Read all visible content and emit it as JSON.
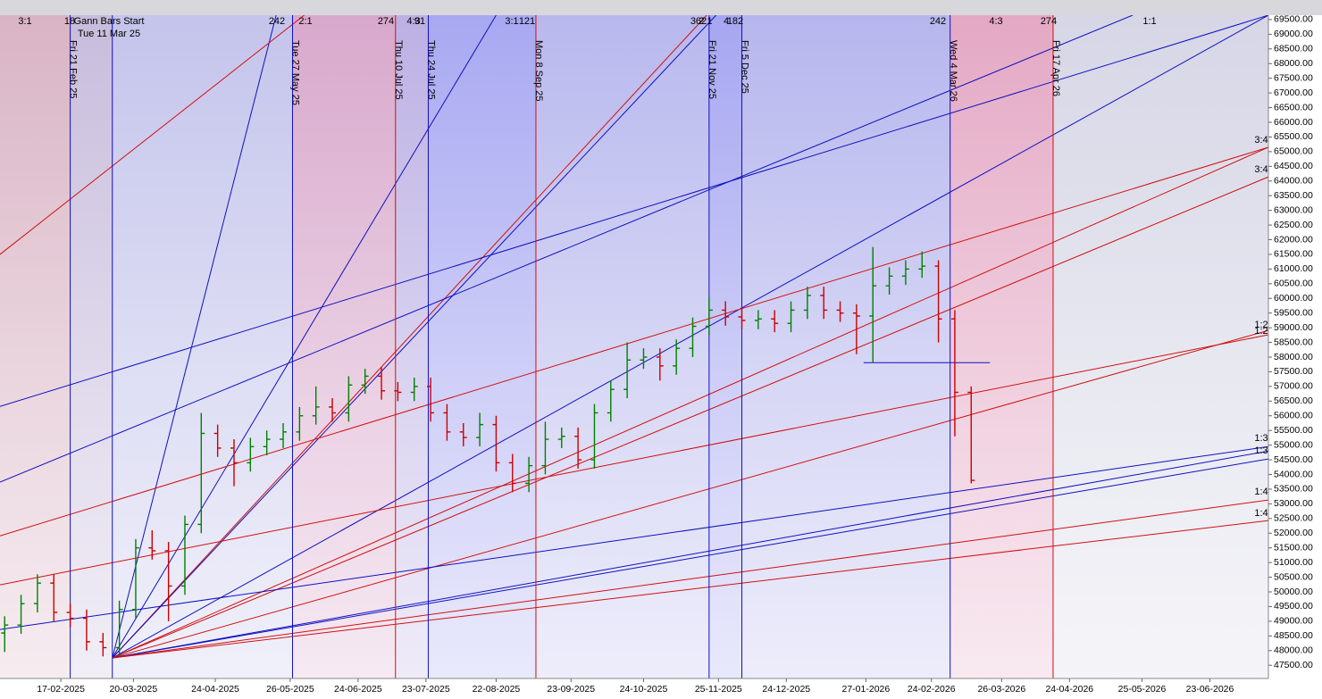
{
  "chart_data": {
    "type": "ohlc",
    "xlim": [
      "2025-01-22",
      "2026-07-18"
    ],
    "ylim": [
      47050,
      69650
    ],
    "xticks": [
      {
        "value": "2025-02-17",
        "label": "17-02-2025"
      },
      {
        "value": "2025-03-20",
        "label": "20-03-2025"
      },
      {
        "value": "2025-04-24",
        "label": "24-04-2025"
      },
      {
        "value": "2025-05-26",
        "label": "26-05-2025"
      },
      {
        "value": "2025-06-24",
        "label": "24-06-2025"
      },
      {
        "value": "2025-07-23",
        "label": "23-07-2025"
      },
      {
        "value": "2025-08-22",
        "label": "22-08-2025"
      },
      {
        "value": "2025-09-23",
        "label": "23-09-2025"
      },
      {
        "value": "2025-10-24",
        "label": "24-10-2025"
      },
      {
        "value": "2025-11-25",
        "label": "25-11-2025"
      },
      {
        "value": "2025-12-24",
        "label": "24-12-2025"
      },
      {
        "value": "2026-01-27",
        "label": "27-01-2026"
      },
      {
        "value": "2026-02-24",
        "label": "24-02-2026"
      },
      {
        "value": "2026-03-26",
        "label": "26-03-2026"
      },
      {
        "value": "2026-04-24",
        "label": "24-04-2026"
      },
      {
        "value": "2026-05-25",
        "label": "25-05-2026"
      },
      {
        "value": "2026-06-23",
        "label": "23-06-2026"
      }
    ],
    "yticks": [
      {
        "value": 47500,
        "label": "47500.00"
      },
      {
        "value": 48000,
        "label": "48000.00"
      },
      {
        "value": 48500,
        "label": "48500.00"
      },
      {
        "value": 49000,
        "label": "49000.00"
      },
      {
        "value": 49500,
        "label": "49500.00"
      },
      {
        "value": 50000,
        "label": "50000.00"
      },
      {
        "value": 50500,
        "label": "50500.00"
      },
      {
        "value": 51000,
        "label": "51000.00"
      },
      {
        "value": 51500,
        "label": "51500.00"
      },
      {
        "value": 52000,
        "label": "52000.00"
      },
      {
        "value": 52500,
        "label": "52500.00"
      },
      {
        "value": 53000,
        "label": "53000.00"
      },
      {
        "value": 53500,
        "label": "53500.00"
      },
      {
        "value": 54000,
        "label": "54000.00"
      },
      {
        "value": 54500,
        "label": "54500.00"
      },
      {
        "value": 55000,
        "label": "55000.00"
      },
      {
        "value": 55500,
        "label": "55500.00"
      },
      {
        "value": 56000,
        "label": "56000.00"
      },
      {
        "value": 56500,
        "label": "56500.00"
      },
      {
        "value": 57000,
        "label": "57000.00"
      },
      {
        "value": 57500,
        "label": "57500.00"
      },
      {
        "value": 58000,
        "label": "58000.00"
      },
      {
        "value": 58500,
        "label": "58500.00"
      },
      {
        "value": 59000,
        "label": "59000.00"
      },
      {
        "value": 59500,
        "label": "59500.00"
      },
      {
        "value": 60000,
        "label": "60000.00"
      },
      {
        "value": 60500,
        "label": "60500.00"
      },
      {
        "value": 61000,
        "label": "61000.00"
      },
      {
        "value": 61500,
        "label": "61500.00"
      },
      {
        "value": 62000,
        "label": "62000.00"
      },
      {
        "value": 62500,
        "label": "62500.00"
      },
      {
        "value": 63000,
        "label": "63000.00"
      },
      {
        "value": 63500,
        "label": "63500.00"
      },
      {
        "value": 64000,
        "label": "64000.00"
      },
      {
        "value": 64500,
        "label": "64500.00"
      },
      {
        "value": 65000,
        "label": "65000.00"
      },
      {
        "value": 65500,
        "label": "65500.00"
      },
      {
        "value": 66000,
        "label": "66000.00"
      },
      {
        "value": 66500,
        "label": "66500.00"
      },
      {
        "value": 67000,
        "label": "67000.00"
      },
      {
        "value": 67500,
        "label": "67500.00"
      },
      {
        "value": 68000,
        "label": "68000.00"
      },
      {
        "value": 68500,
        "label": "68500.00"
      },
      {
        "value": 69000,
        "label": "69000.00"
      },
      {
        "value": 69500,
        "label": "69500.00"
      }
    ],
    "up_color": "#008000",
    "down_color": "#cc0000",
    "x": [
      "2025-01-24",
      "2025-01-31",
      "2025-02-07",
      "2025-02-14",
      "2025-02-21",
      "2025-02-28",
      "2025-03-07",
      "2025-03-14",
      "2025-03-21",
      "2025-03-28",
      "2025-04-04",
      "2025-04-11",
      "2025-04-18",
      "2025-04-25",
      "2025-05-02",
      "2025-05-09",
      "2025-05-16",
      "2025-05-23",
      "2025-05-30",
      "2025-06-06",
      "2025-06-13",
      "2025-06-20",
      "2025-06-27",
      "2025-07-04",
      "2025-07-11",
      "2025-07-18",
      "2025-07-25",
      "2025-08-01",
      "2025-08-08",
      "2025-08-15",
      "2025-08-22",
      "2025-08-29",
      "2025-09-05",
      "2025-09-12",
      "2025-09-19",
      "2025-09-26",
      "2025-10-03",
      "2025-10-10",
      "2025-10-17",
      "2025-10-24",
      "2025-10-31",
      "2025-11-07",
      "2025-11-14",
      "2025-11-21",
      "2025-11-28",
      "2025-12-05",
      "2025-12-12",
      "2025-12-19",
      "2025-12-26",
      "2026-01-02",
      "2026-01-09",
      "2026-01-16",
      "2026-01-23",
      "2026-01-30",
      "2026-02-06",
      "2026-02-13",
      "2026-02-20",
      "2026-02-27",
      "2026-03-06",
      "2026-03-13"
    ],
    "open": [
      48600,
      48870,
      49600,
      50300,
      49300,
      49100,
      48300,
      48100,
      49400,
      51500,
      51400,
      50200,
      52300,
      55400,
      54900,
      54400,
      54950,
      55200,
      55450,
      56000,
      56300,
      56100,
      57050,
      57350,
      56850,
      56800,
      57000,
      56100,
      55450,
      55260,
      55700,
      54400,
      53700,
      54300,
      55200,
      55300,
      54500,
      56100,
      56900,
      57900,
      58000,
      57700,
      58300,
      59050,
      59600,
      59370,
      59250,
      59300,
      59150,
      59600,
      60100,
      59600,
      59500,
      59400,
      60430,
      60760,
      61000,
      61100,
      59300,
      56800
    ],
    "high": [
      49170,
      49900,
      50600,
      50600,
      49600,
      49400,
      48600,
      49700,
      51800,
      52100,
      51700,
      52600,
      56100,
      55700,
      55200,
      55250,
      55500,
      55750,
      56300,
      57000,
      56600,
      57350,
      57600,
      57650,
      57150,
      57300,
      57300,
      56400,
      55750,
      56100,
      56000,
      54700,
      54600,
      55800,
      55600,
      55600,
      56400,
      57200,
      58500,
      58300,
      58300,
      58600,
      59350,
      60050,
      59900,
      59670,
      59600,
      59600,
      59900,
      60400,
      60400,
      59900,
      59800,
      61750,
      61060,
      61300,
      61600,
      61300,
      59600,
      57000
    ],
    "low": [
      47950,
      48570,
      49300,
      49000,
      48800,
      48000,
      47800,
      47800,
      49100,
      51100,
      49000,
      49900,
      52000,
      54600,
      53600,
      54100,
      54650,
      54900,
      55150,
      55700,
      55800,
      55800,
      56750,
      56550,
      56500,
      56500,
      55800,
      55150,
      54960,
      54960,
      54100,
      53400,
      53400,
      54000,
      54900,
      54200,
      54200,
      55800,
      56600,
      57600,
      57200,
      57400,
      58000,
      58750,
      59070,
      58950,
      58950,
      58850,
      58850,
      59300,
      59300,
      59200,
      58100,
      57800,
      60130,
      60460,
      60700,
      58500,
      55300,
      53700
    ],
    "close": [
      48870,
      49600,
      50300,
      49300,
      49100,
      48300,
      48100,
      49400,
      51500,
      51400,
      50200,
      52300,
      55400,
      54900,
      54400,
      54950,
      55200,
      55450,
      56000,
      56300,
      56100,
      57050,
      57350,
      56850,
      56800,
      57000,
      56100,
      55450,
      55260,
      55700,
      54400,
      53700,
      54300,
      55200,
      55300,
      54500,
      56100,
      56900,
      57900,
      58000,
      57700,
      58300,
      59050,
      59600,
      59370,
      59250,
      59300,
      59150,
      59600,
      60100,
      59600,
      59500,
      59400,
      60430,
      60760,
      61000,
      61100,
      59300,
      56800,
      53800
    ],
    "gann_start": {
      "title": "Gann Bars Start",
      "label": "Tue 11 Mar 25"
    },
    "markers": [
      {
        "x": "2025-02-21",
        "label": "Fri 21 Feb 25",
        "color": "#1010c0"
      },
      {
        "x": "2025-03-11",
        "color": "#1010c0"
      },
      {
        "x": "2025-05-27",
        "label": "Tue 27 May 25",
        "color": "#1010c0"
      },
      {
        "x": "2025-07-10",
        "label": "Thu 10 Jul 25",
        "color": "#d01010"
      },
      {
        "x": "2025-07-24",
        "label": "Thu 24 Jul 25",
        "color": "#1010c0"
      },
      {
        "x": "2025-09-08",
        "label": "Mon 8 Sep 25",
        "color": "#d01010"
      },
      {
        "x": "2025-11-21",
        "label": "Fri 21 Nov 25",
        "color": "#1010c0"
      },
      {
        "x": "2025-12-05",
        "label": "Fri 5 Dec 25",
        "color": "#1010c0"
      },
      {
        "x": "2026-03-04",
        "label": "Wed 4 Mar 26",
        "color": "#1010c0"
      },
      {
        "x": "2026-04-17",
        "label": "Fri 17 Apr 26",
        "color": "#d01010"
      }
    ],
    "band_colors": [
      "#d9b4c4",
      "#c8bcdc",
      "#c4c4ec",
      "#d8a8cc",
      "#bcb0e4",
      "#a8a8f2",
      "#b8b8ee",
      "#a6a6f2",
      "#b6b6ee",
      "#e4a8c4",
      "#d6d6e6"
    ],
    "lines": [
      {
        "from": [
          "2025-03-11",
          47750
        ],
        "to": [
          "2025-05-20",
          69650
        ],
        "color": "#1010c0"
      },
      {
        "from": [
          "2025-03-11",
          47750
        ],
        "to": [
          "2025-08-22",
          69650
        ],
        "color": "#1010c0"
      },
      {
        "from": [
          "2025-03-11",
          47750
        ],
        "to": [
          "2025-11-20",
          69650
        ],
        "color": "#d01010"
      },
      {
        "from": [
          "2025-03-11",
          47750
        ],
        "to": [
          "2025-11-24",
          69650
        ],
        "color": "#1010c0"
      },
      {
        "from": [
          "2025-03-11",
          47750
        ],
        "to": [
          "2026-07-18",
          69650
        ],
        "color": "#1010c0"
      },
      {
        "from": [
          "2025-03-11",
          47750
        ],
        "to": [
          "2026-07-18",
          65150
        ],
        "color": "#d01010"
      },
      {
        "from": [
          "2025-03-11",
          47750
        ],
        "to": [
          "2026-07-18",
          64140
        ],
        "color": "#d01010"
      },
      {
        "from": [
          "2025-03-11",
          47750
        ],
        "to": [
          "2026-07-18",
          58910
        ],
        "color": "#d01010"
      },
      {
        "from": [
          "2025-03-11",
          47750
        ],
        "to": [
          "2026-07-18",
          54800
        ],
        "color": "#1010c0"
      },
      {
        "from": [
          "2025-03-11",
          47750
        ],
        "to": [
          "2026-07-18",
          54530
        ],
        "color": "#1010c0"
      },
      {
        "from": [
          "2025-03-11",
          47750
        ],
        "to": [
          "2026-07-18",
          53130
        ],
        "color": "#d01010"
      },
      {
        "from": [
          "2025-03-11",
          47750
        ],
        "to": [
          "2026-07-18",
          52430
        ],
        "color": "#d01010"
      },
      {
        "from": [
          "2025-01-22",
          56320
        ],
        "to": [
          "2026-07-18",
          69650
        ],
        "color": "#1010c0"
      },
      {
        "from": [
          "2025-01-22",
          53740
        ],
        "to": [
          "2026-05-21",
          69650
        ],
        "color": "#1010c0"
      },
      {
        "from": [
          "2025-01-22",
          61500
        ],
        "to": [
          "2025-06-01",
          69650
        ],
        "color": "#d01010"
      },
      {
        "from": [
          "2025-01-22",
          51910
        ],
        "to": [
          "2026-07-18",
          65150
        ],
        "color": "#d01010"
      },
      {
        "from": [
          "2025-01-22",
          48720
        ],
        "to": [
          "2026-07-18",
          54950
        ],
        "color": "#1010c0"
      },
      {
        "from": [
          "2025-01-22",
          50240
        ],
        "to": [
          "2026-07-18",
          58760
        ],
        "color": "#d01010"
      },
      {
        "from": [
          "2026-01-26",
          57810
        ],
        "to": [
          "2026-03-21",
          57810
        ],
        "color": "#1010c0"
      }
    ],
    "top_labels": [
      "3:1",
      "18",
      "242",
      "2:1",
      "274",
      "4:3",
      "91",
      "3:1",
      "121",
      "362",
      "2:1",
      "4",
      "182",
      "242",
      "4:3",
      "274",
      "1:1"
    ],
    "right_labels": [
      "3:4",
      "3:4",
      "1:2",
      "1:2",
      "1:3",
      "1:3",
      "1:4",
      "1:4"
    ]
  }
}
